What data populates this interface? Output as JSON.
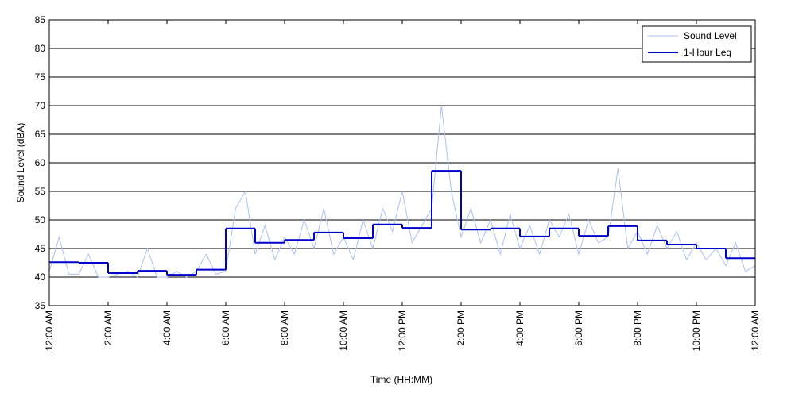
{
  "chart_data": {
    "type": "line",
    "ylabel": "Sound Level (dBA)",
    "xlabel": "Time (HH:MM)",
    "xlim": [
      0,
      1440
    ],
    "xticks": [
      {
        "value": 0,
        "label": "12:00 AM"
      },
      {
        "value": 120,
        "label": "2:00 AM"
      },
      {
        "value": 240,
        "label": "4:00 AM"
      },
      {
        "value": 360,
        "label": "6:00 AM"
      },
      {
        "value": 480,
        "label": "8:00 AM"
      },
      {
        "value": 600,
        "label": "10:00 AM"
      },
      {
        "value": 720,
        "label": "12:00 PM"
      },
      {
        "value": 840,
        "label": "2:00 PM"
      },
      {
        "value": 960,
        "label": "4:00 PM"
      },
      {
        "value": 1080,
        "label": "6:00 PM"
      },
      {
        "value": 1200,
        "label": "8:00 PM"
      },
      {
        "value": 1320,
        "label": "10:00 PM"
      },
      {
        "value": 1440,
        "label": "12:00 AM"
      }
    ],
    "ylim": [
      35,
      85
    ],
    "yticks": [
      35,
      40,
      45,
      50,
      55,
      60,
      65,
      70,
      75,
      80,
      85
    ],
    "grid": true,
    "legend": "upper right",
    "series": [
      {
        "name": "Sound Level",
        "color": "#a9c1f2",
        "step": false,
        "x": [
          0,
          20,
          40,
          60,
          80,
          100,
          120,
          140,
          160,
          180,
          200,
          220,
          240,
          260,
          280,
          300,
          320,
          340,
          360,
          380,
          400,
          420,
          440,
          460,
          480,
          500,
          520,
          540,
          560,
          580,
          600,
          620,
          640,
          660,
          680,
          700,
          720,
          740,
          760,
          780,
          800,
          820,
          840,
          860,
          880,
          900,
          920,
          940,
          960,
          980,
          1000,
          1020,
          1040,
          1060,
          1080,
          1100,
          1120,
          1140,
          1160,
          1180,
          1200,
          1220,
          1240,
          1260,
          1280,
          1300,
          1320,
          1340,
          1360,
          1380,
          1400,
          1420,
          1440
        ],
        "values": [
          41,
          47,
          40.5,
          40.5,
          44,
          40,
          40,
          40.5,
          41,
          40,
          45,
          40,
          40,
          41,
          40,
          41,
          44,
          40.5,
          41,
          52,
          55,
          44,
          49,
          43,
          47,
          44,
          50,
          45,
          52,
          44,
          47,
          43,
          50,
          45,
          52,
          48,
          55,
          46,
          49,
          52,
          70,
          55,
          47,
          52,
          46,
          50,
          44,
          51,
          45,
          49,
          44,
          50,
          47,
          51,
          44,
          50,
          46,
          47,
          59,
          45,
          48,
          44,
          49,
          45,
          48,
          43,
          46,
          43,
          45,
          42,
          46,
          41,
          42
        ]
      },
      {
        "name": "1-Hour Leq",
        "color": "#0000cc",
        "step": true,
        "x": [
          0,
          60,
          120,
          180,
          240,
          300,
          360,
          420,
          480,
          540,
          600,
          660,
          720,
          780,
          840,
          900,
          960,
          1020,
          1080,
          1140,
          1200,
          1260,
          1320,
          1380
        ],
        "values": [
          42.6,
          42.5,
          40.7,
          41.1,
          40.4,
          41.3,
          48.5,
          46.0,
          46.5,
          47.8,
          46.8,
          49.2,
          48.6,
          58.6,
          48.3,
          48.5,
          47.1,
          48.5,
          47.2,
          48.9,
          46.4,
          45.7,
          45.0,
          43.3
        ]
      }
    ]
  }
}
